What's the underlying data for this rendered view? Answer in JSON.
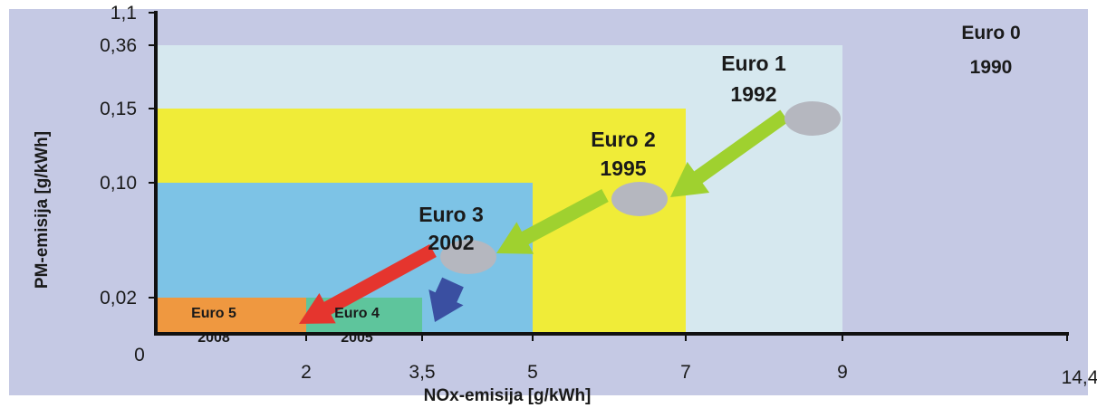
{
  "chart_data": {
    "type": "area",
    "title": "",
    "xlabel": "NOx-emisija [g/kWh]",
    "ylabel": "PM-emisija [g/kWh]",
    "x_ticks": [
      "2",
      "3,5",
      "5",
      "7",
      "9",
      "14,4"
    ],
    "x_tick_values": [
      2,
      3.5,
      5,
      7,
      9,
      14.4
    ],
    "y_ticks": [
      "0",
      "0,02",
      "0,10",
      "0,15",
      "0,36",
      "1,1"
    ],
    "y_tick_values": [
      0,
      0.02,
      0.1,
      0.15,
      0.36,
      1.1
    ],
    "xlim": [
      0,
      14.4
    ],
    "ylim": [
      0,
      1.1
    ],
    "scale": "non-linear (categorical breakpoints)",
    "series": [
      {
        "name": "Euro 0",
        "year": "1990",
        "nox": 14.4,
        "pm": 1.1,
        "color": "#c5c9e4"
      },
      {
        "name": "Euro 1",
        "year": "1992",
        "nox": 9,
        "pm": 0.36,
        "color": "#d6e8ef"
      },
      {
        "name": "Euro 2",
        "year": "1995",
        "nox": 7,
        "pm": 0.15,
        "color": "#f0ec38"
      },
      {
        "name": "Euro 3",
        "year": "2002",
        "nox": 5,
        "pm": 0.1,
        "color": "#7dc3e6"
      },
      {
        "name": "Euro 4",
        "year": "2005",
        "nox": 3.5,
        "pm": 0.02,
        "color": "#5ec59c"
      },
      {
        "name": "Euro 5",
        "year": "2008",
        "nox": 2,
        "pm": 0.02,
        "color": "#ef9840"
      }
    ],
    "transitions": [
      {
        "from": "Euro 1",
        "to": "Euro 2",
        "color": "#9fd12f"
      },
      {
        "from": "Euro 2",
        "to": "Euro 3",
        "color": "#9fd12f"
      },
      {
        "from": "Euro 3",
        "to": "Euro 5",
        "color": "#e5352e"
      },
      {
        "from": "Euro 3",
        "to": "Euro 4",
        "color": "#3a4fa1"
      }
    ]
  }
}
